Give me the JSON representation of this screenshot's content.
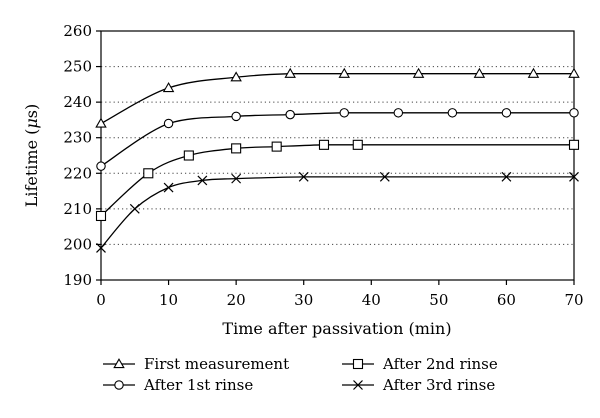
{
  "chart_data": {
    "type": "line",
    "xlabel": "Time after passivation (min)",
    "ylabel": "Lifetime (μs)",
    "ylabel_parts": {
      "pre": "Lifetime (",
      "mu": "μ",
      "post": "s)"
    },
    "xlim": [
      0,
      70
    ],
    "ylim": [
      190,
      260
    ],
    "x_ticks": [
      0,
      10,
      20,
      30,
      40,
      50,
      60,
      70
    ],
    "y_ticks": [
      190,
      200,
      210,
      220,
      230,
      240,
      250,
      260
    ],
    "grid": "horizontal-dotted",
    "legend_position": "bottom",
    "series": [
      {
        "name": "First measurement",
        "marker": "triangle",
        "x": [
          0,
          10,
          20,
          28,
          36,
          47,
          56,
          64,
          70
        ],
        "y": [
          234,
          244,
          247,
          248,
          248,
          248,
          248,
          248,
          248
        ]
      },
      {
        "name": "After 1st rinse",
        "marker": "circle",
        "x": [
          0,
          10,
          20,
          28,
          36,
          44,
          52,
          60,
          70
        ],
        "y": [
          222,
          234,
          236,
          236.5,
          237,
          237,
          237,
          237,
          237
        ]
      },
      {
        "name": "After 2nd rinse",
        "marker": "square",
        "x": [
          0,
          7,
          13,
          20,
          26,
          33,
          38,
          70
        ],
        "y": [
          208,
          220,
          225,
          227,
          227.5,
          228,
          228,
          228
        ]
      },
      {
        "name": "After 3rd rinse",
        "marker": "cross",
        "x": [
          0,
          5,
          10,
          15,
          20,
          30,
          42,
          60,
          70
        ],
        "y": [
          199,
          210,
          216,
          218,
          218.5,
          219,
          219,
          219,
          219
        ]
      }
    ]
  }
}
